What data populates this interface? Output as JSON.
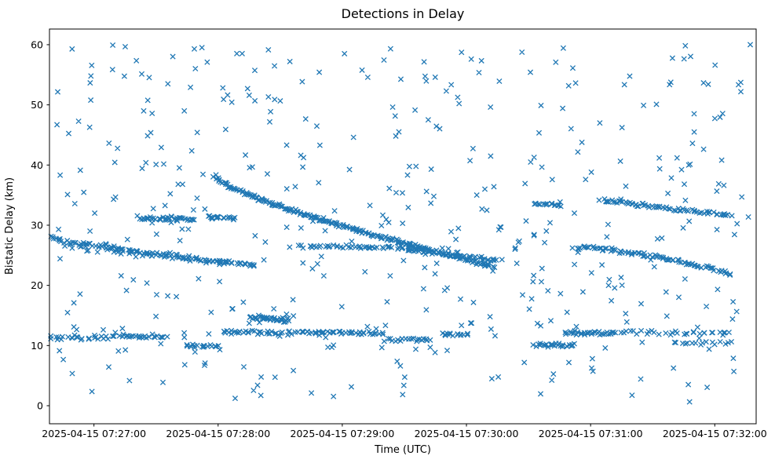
{
  "chart_data": {
    "type": "scatter",
    "title": "Detections in Delay",
    "xlabel": "Time (UTC)",
    "ylabel": "Bistatic Delay (km)",
    "marker": "x",
    "marker_color": "#1f77b4",
    "grid": false,
    "legend": "none",
    "x_ticks": [
      {
        "t": 0,
        "label": "2025-04-15 07:27:00"
      },
      {
        "t": 60,
        "label": "2025-04-15 07:28:00"
      },
      {
        "t": 120,
        "label": "2025-04-15 07:29:00"
      },
      {
        "t": 180,
        "label": "2025-04-15 07:30:00"
      },
      {
        "t": 240,
        "label": "2025-04-15 07:31:00"
      },
      {
        "t": 300,
        "label": "2025-04-15 07:32:00"
      }
    ],
    "y_ticks": [
      0,
      10,
      20,
      30,
      40,
      50,
      60
    ],
    "xlim_seconds": [
      -21.5,
      320
    ],
    "ylim": [
      -3,
      62.6
    ],
    "generation": {
      "seed": 42,
      "tracks": [
        {
          "name": "left-arc-a",
          "t0": -21,
          "t1": 78,
          "y0": 28.0,
          "y1": 23.2,
          "shape": 0.8,
          "count": 110,
          "t_jitter": 3,
          "y_jitter": 0.45
        },
        {
          "name": "left-arc-b",
          "t0": -15,
          "t1": 70,
          "y0": 26.6,
          "y1": 23.6,
          "shape": 1.0,
          "count": 38,
          "t_jitter": 4,
          "y_jitter": 0.6
        },
        {
          "name": "band-31-a",
          "t0": 22,
          "t1": 48,
          "y0": 31.2,
          "y1": 30.9,
          "shape": 1.0,
          "count": 42,
          "t_jitter": 3,
          "y_jitter": 0.45
        },
        {
          "name": "band-31-b",
          "t0": 55,
          "t1": 68,
          "y0": 31.4,
          "y1": 31.1,
          "shape": 1.0,
          "count": 18,
          "t_jitter": 2,
          "y_jitter": 0.35
        },
        {
          "name": "main-descending",
          "t0": 58,
          "t1": 192,
          "y0": 38.2,
          "y1": 23.3,
          "shape": 0.75,
          "count": 230,
          "t_jitter": 2,
          "y_jitter": 0.35
        },
        {
          "name": "echo-below-main",
          "t0": 150,
          "t1": 196,
          "y0": 25.9,
          "y1": 24.2,
          "shape": 1.0,
          "count": 45,
          "t_jitter": 3,
          "y_jitter": 0.4
        },
        {
          "name": "band-26",
          "t0": 100,
          "t1": 162,
          "y0": 26.5,
          "y1": 26.2,
          "shape": 1.0,
          "count": 55,
          "t_jitter": 3,
          "y_jitter": 0.35
        },
        {
          "name": "blob-14",
          "t0": 76,
          "t1": 94,
          "y0": 14.7,
          "y1": 14.2,
          "shape": 1.0,
          "count": 40,
          "t_jitter": 2,
          "y_jitter": 0.5
        },
        {
          "name": "band-11-a",
          "t0": -21,
          "t1": 10,
          "y0": 11.3,
          "y1": 11.4,
          "shape": 1.0,
          "count": 28,
          "t_jitter": 3,
          "y_jitter": 0.5
        },
        {
          "name": "band-11-b",
          "t0": 12,
          "t1": 35,
          "y0": 11.6,
          "y1": 11.5,
          "shape": 1.0,
          "count": 24,
          "t_jitter": 2,
          "y_jitter": 0.4
        },
        {
          "name": "band-10-a",
          "t0": 44,
          "t1": 60,
          "y0": 9.9,
          "y1": 9.9,
          "shape": 1.0,
          "count": 18,
          "t_jitter": 2,
          "y_jitter": 0.3
        },
        {
          "name": "band-12-a",
          "t0": 62,
          "t1": 96,
          "y0": 12.2,
          "y1": 12.1,
          "shape": 1.0,
          "count": 34,
          "t_jitter": 2,
          "y_jitter": 0.4
        },
        {
          "name": "band-12-b",
          "t0": 98,
          "t1": 140,
          "y0": 12.2,
          "y1": 12.0,
          "shape": 1.0,
          "count": 44,
          "t_jitter": 2,
          "y_jitter": 0.35
        },
        {
          "name": "band-11-c",
          "t0": 143,
          "t1": 162,
          "y0": 11.0,
          "y1": 11.0,
          "shape": 1.0,
          "count": 20,
          "t_jitter": 2,
          "y_jitter": 0.35
        },
        {
          "name": "band-12-c",
          "t0": 168,
          "t1": 181,
          "y0": 11.9,
          "y1": 11.9,
          "shape": 1.0,
          "count": 14,
          "t_jitter": 2,
          "y_jitter": 0.3
        },
        {
          "name": "band-10-b",
          "t0": 213,
          "t1": 233,
          "y0": 10.1,
          "y1": 10.0,
          "shape": 1.0,
          "count": 26,
          "t_jitter": 2,
          "y_jitter": 0.5
        },
        {
          "name": "band-12-d",
          "t0": 228,
          "t1": 252,
          "y0": 12.1,
          "y1": 12.0,
          "shape": 1.0,
          "count": 34,
          "t_jitter": 2,
          "y_jitter": 0.4
        },
        {
          "name": "band-12-e",
          "t0": 255,
          "t1": 308,
          "y0": 12.2,
          "y1": 12.1,
          "shape": 1.0,
          "count": 32,
          "t_jitter": 3,
          "y_jitter": 0.5
        },
        {
          "name": "band-10-c",
          "t0": 280,
          "t1": 308,
          "y0": 10.4,
          "y1": 10.4,
          "shape": 1.0,
          "count": 16,
          "t_jitter": 2,
          "y_jitter": 0.3
        },
        {
          "name": "right-descending",
          "t0": 232,
          "t1": 308,
          "y0": 26.3,
          "y1": 21.8,
          "shape": 1.6,
          "count": 90,
          "t_jitter": 2,
          "y_jitter": 0.4
        },
        {
          "name": "right-upper-a",
          "t0": 212,
          "t1": 226,
          "y0": 33.6,
          "y1": 33.3,
          "shape": 1.0,
          "count": 16,
          "t_jitter": 2,
          "y_jitter": 0.3
        },
        {
          "name": "right-upper-b",
          "t0": 245,
          "t1": 268,
          "y0": 34.1,
          "y1": 33.3,
          "shape": 1.0,
          "count": 28,
          "t_jitter": 2,
          "y_jitter": 0.4
        },
        {
          "name": "right-upper-c",
          "t0": 268,
          "t1": 308,
          "y0": 33.2,
          "y1": 31.6,
          "shape": 1.0,
          "count": 42,
          "t_jitter": 2,
          "y_jitter": 0.35
        }
      ],
      "noise": {
        "count": 450,
        "t0": -21,
        "t1": 318,
        "y0": 0.5,
        "y1": 60.2
      }
    }
  }
}
